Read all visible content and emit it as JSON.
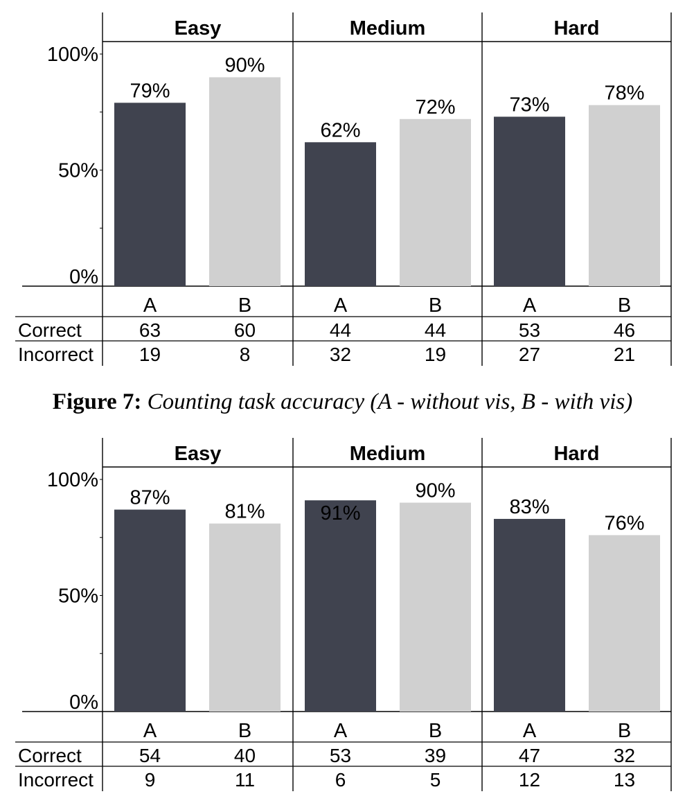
{
  "caption": {
    "label": "Figure 7:",
    "text": "Counting task accuracy (A - without vis, B - with vis)"
  },
  "colors": {
    "A": "#40434f",
    "B": "#d0d0d0"
  },
  "chart_data": [
    {
      "type": "bar",
      "groups": [
        "Easy",
        "Medium",
        "Hard"
      ],
      "categories": [
        "A",
        "B"
      ],
      "y_ticks": [
        "0%",
        "50%",
        "100%"
      ],
      "ylim": [
        0,
        100
      ],
      "grid": false,
      "values": [
        [
          79,
          90
        ],
        [
          62,
          72
        ],
        [
          73,
          78
        ]
      ],
      "value_labels": [
        [
          "79%",
          "90%"
        ],
        [
          "62%",
          "72%"
        ],
        [
          "73%",
          "78%"
        ]
      ],
      "table": {
        "row_labels": [
          "Correct",
          "Incorrect"
        ],
        "rows": [
          [
            "63",
            "60",
            "44",
            "44",
            "53",
            "46"
          ],
          [
            "19",
            "8",
            "32",
            "19",
            "27",
            "21"
          ]
        ]
      }
    },
    {
      "type": "bar",
      "groups": [
        "Easy",
        "Medium",
        "Hard"
      ],
      "categories": [
        "A",
        "B"
      ],
      "y_ticks": [
        "0%",
        "50%",
        "100%"
      ],
      "ylim": [
        0,
        100
      ],
      "grid": false,
      "values": [
        [
          87,
          81
        ],
        [
          91,
          90
        ],
        [
          83,
          76
        ]
      ],
      "value_labels": [
        [
          "87%",
          "81%"
        ],
        [
          "91%",
          "90%"
        ],
        [
          "83%",
          "76%"
        ]
      ],
      "table": {
        "row_labels": [
          "Correct",
          "Incorrect"
        ],
        "rows": [
          [
            "54",
            "40",
            "53",
            "39",
            "47",
            "32"
          ],
          [
            "9",
            "11",
            "6",
            "5",
            "12",
            "13"
          ]
        ]
      }
    }
  ]
}
